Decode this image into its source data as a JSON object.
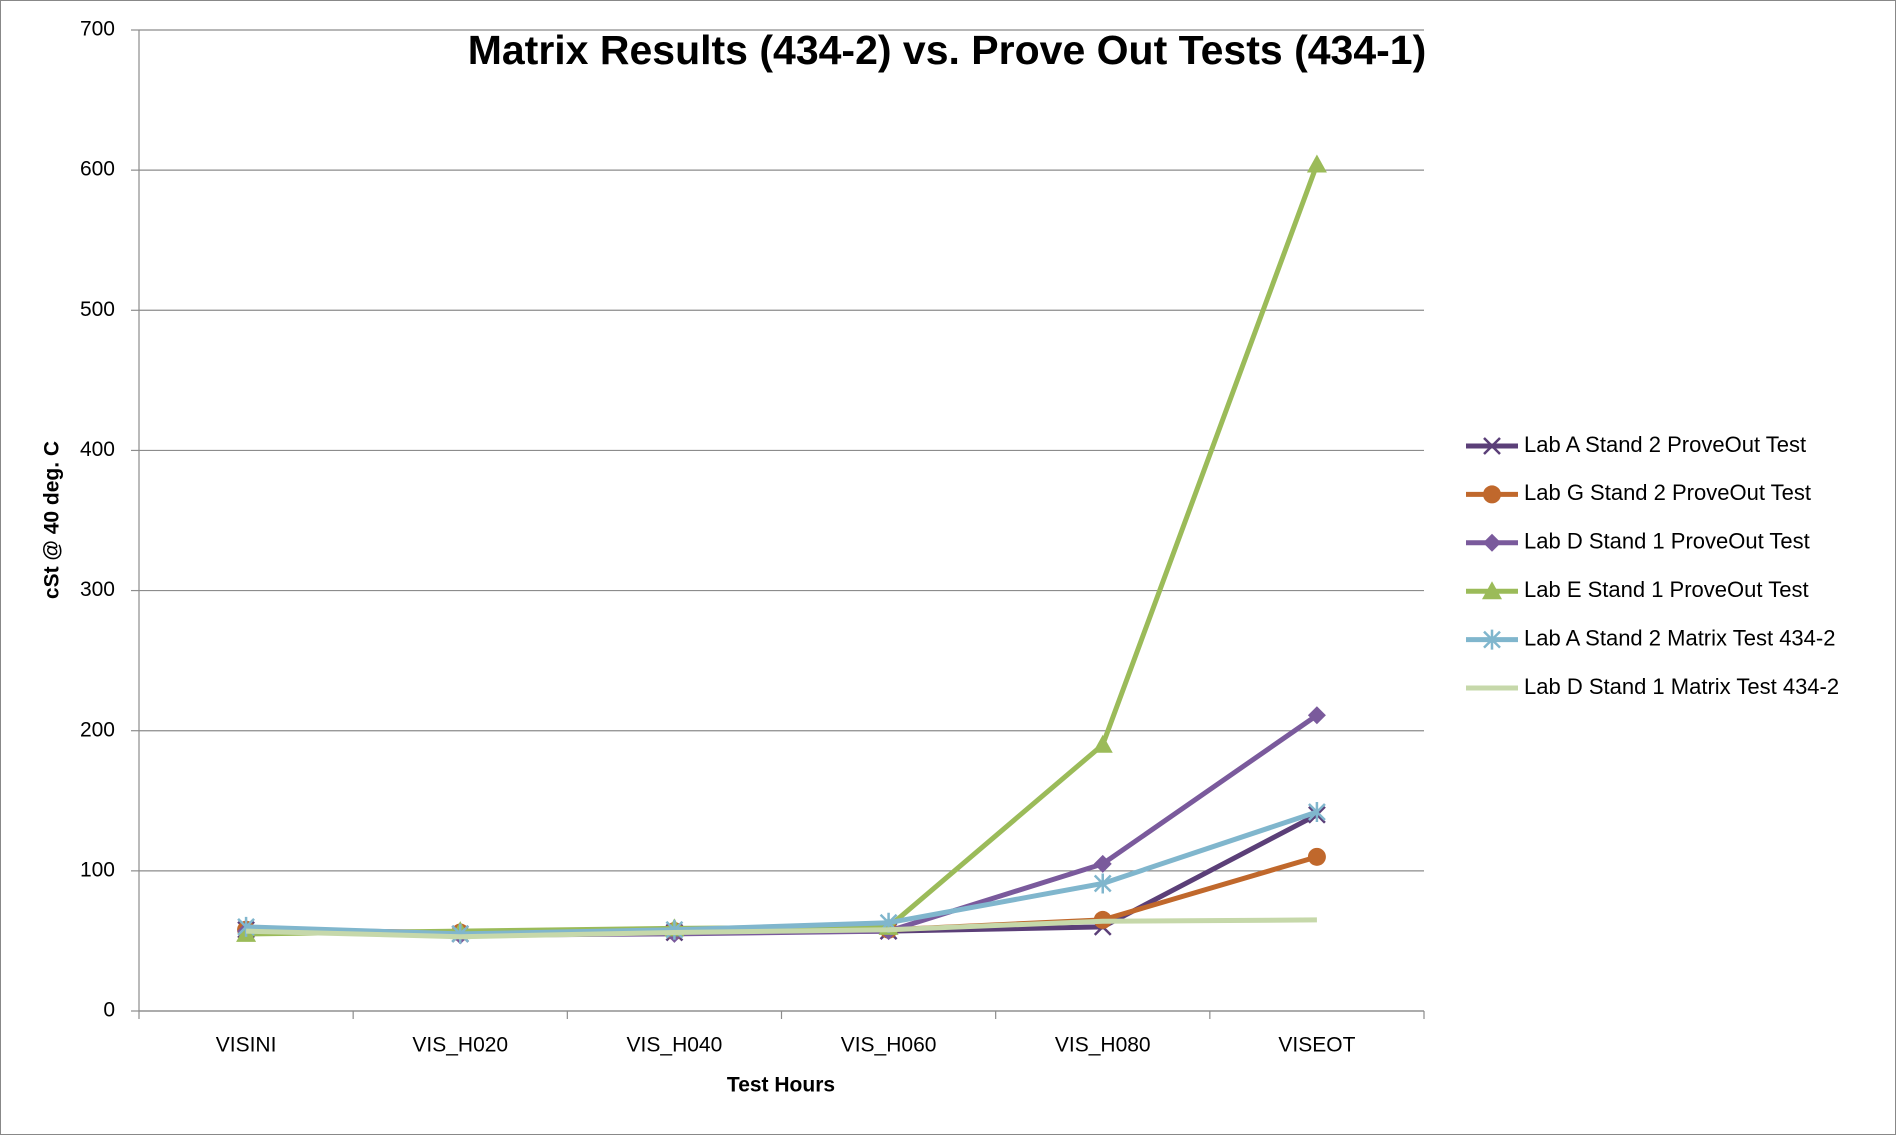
{
  "chart_data": {
    "type": "line",
    "title": "Matrix Results (434-2) vs. Prove Out Tests (434-1)",
    "x_label": "Test Hours",
    "y_label": "cSt @ 40 deg. C",
    "categories": [
      "VISINI",
      "VIS_H020",
      "VIS_H040",
      "VIS_H060",
      "VIS_H080",
      "VISEOT"
    ],
    "series": [
      {
        "name": "Lab A Stand 2 ProveOut Test",
        "color": "#5b3f78",
        "marker": "x",
        "values": [
          58,
          55,
          56,
          57,
          60,
          140
        ]
      },
      {
        "name": "Lab G Stand 2 ProveOut Test",
        "color": "#c0682c",
        "marker": "circle",
        "values": [
          58,
          56,
          57,
          58,
          65,
          110
        ]
      },
      {
        "name": "Lab D Stand 1 ProveOut Test",
        "color": "#7a5a9c",
        "marker": "diamond",
        "values": [
          57,
          54,
          55,
          57,
          105,
          211
        ]
      },
      {
        "name": "Lab E Stand 1 ProveOut Test",
        "color": "#9bbb59",
        "marker": "triangle",
        "values": [
          55,
          57,
          59,
          60,
          190,
          604
        ]
      },
      {
        "name": "Lab A Stand 2 Matrix Test 434-2",
        "color": "#80b6cd",
        "marker": "star",
        "values": [
          60,
          55,
          58,
          63,
          91,
          142
        ]
      },
      {
        "name": "Lab D Stand 1 Matrix Test 434-2",
        "color": "#c6d8aa",
        "marker": "none",
        "values": [
          57,
          53,
          56,
          58,
          64,
          65
        ]
      }
    ],
    "ylim": [
      0,
      700
    ],
    "yticks": [
      0,
      100,
      200,
      300,
      400,
      500,
      600,
      700
    ],
    "grid": true,
    "legend": "right"
  }
}
